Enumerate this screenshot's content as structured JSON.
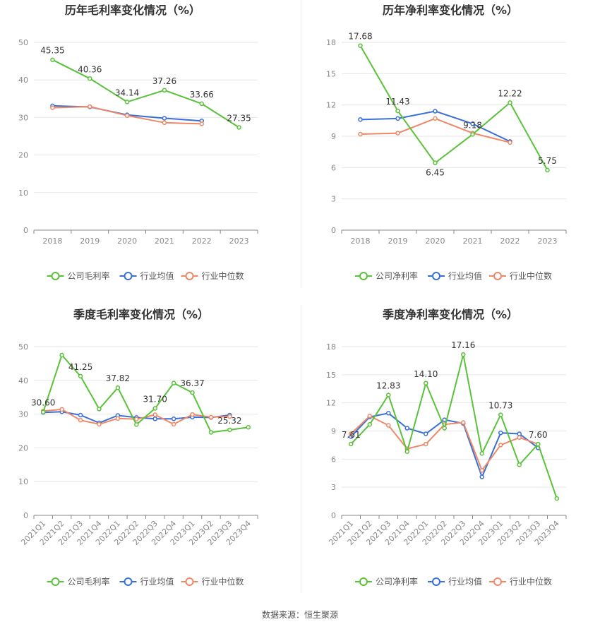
{
  "colors": {
    "company": "#5ac23a",
    "industry_avg": "#3a6fd8",
    "industry_median": "#ee8866",
    "grid": "#e6e6e6",
    "axis": "#888888",
    "title": "#333333",
    "tick": "#888888",
    "label": "#333333"
  },
  "legend_labels": {
    "gross": [
      "公司毛利率",
      "行业均值",
      "行业中位数"
    ],
    "net": [
      "公司净利率",
      "行业均值",
      "行业中位数"
    ]
  },
  "source": "数据来源：恒生聚源",
  "chart_data": [
    {
      "type": "line",
      "title": "历年毛利率变化情况（%）",
      "categories": [
        "2018",
        "2019",
        "2020",
        "2021",
        "2022",
        "2023"
      ],
      "ylim": [
        0,
        50
      ],
      "yticks": [
        0,
        10,
        20,
        30,
        40,
        50
      ],
      "grid": true,
      "legend": "bottom",
      "series": [
        {
          "name": "公司毛利率",
          "values": [
            45.35,
            40.36,
            34.14,
            37.26,
            33.66,
            27.35
          ]
        },
        {
          "name": "行业均值",
          "values": [
            33.1,
            32.8,
            30.7,
            29.8,
            29.1,
            null
          ]
        },
        {
          "name": "行业中位数",
          "values": [
            32.6,
            32.9,
            30.5,
            28.6,
            28.3,
            null
          ]
        }
      ],
      "data_labels": [
        {
          "index": 0,
          "text": "45.35"
        },
        {
          "index": 1,
          "text": "40.36"
        },
        {
          "index": 2,
          "text": "34.14"
        },
        {
          "index": 3,
          "text": "37.26"
        },
        {
          "index": 4,
          "text": "33.66"
        },
        {
          "index": 5,
          "text": "27.35"
        }
      ]
    },
    {
      "type": "line",
      "title": "历年净利率变化情况（%）",
      "categories": [
        "2018",
        "2019",
        "2020",
        "2021",
        "2022",
        "2023"
      ],
      "ylim": [
        0,
        18
      ],
      "yticks": [
        0,
        3,
        6,
        9,
        12,
        15,
        18
      ],
      "grid": true,
      "legend": "bottom",
      "series": [
        {
          "name": "公司净利率",
          "values": [
            17.68,
            11.43,
            6.45,
            9.18,
            12.22,
            5.75
          ]
        },
        {
          "name": "行业均值",
          "values": [
            10.6,
            10.7,
            11.4,
            10.2,
            8.5,
            null
          ]
        },
        {
          "name": "行业中位数",
          "values": [
            9.2,
            9.3,
            10.7,
            9.3,
            8.4,
            null
          ]
        }
      ],
      "data_labels": [
        {
          "index": 0,
          "text": "17.68"
        },
        {
          "index": 1,
          "text": "11.43"
        },
        {
          "index": 2,
          "text": "6.45"
        },
        {
          "index": 3,
          "text": "9.18"
        },
        {
          "index": 4,
          "text": "12.22"
        },
        {
          "index": 5,
          "text": "5.75"
        }
      ]
    },
    {
      "type": "line",
      "title": "季度毛利率变化情况（%）",
      "categories": [
        "2021Q1",
        "2021Q2",
        "2021Q3",
        "2021Q4",
        "2022Q1",
        "2022Q2",
        "2022Q3",
        "2022Q4",
        "2023Q1",
        "2023Q2",
        "2023Q3",
        "2023Q4"
      ],
      "ylim": [
        0,
        50
      ],
      "yticks": [
        0,
        10,
        20,
        30,
        40,
        50
      ],
      "grid": true,
      "legend": "bottom",
      "series": [
        {
          "name": "公司毛利率",
          "values": [
            30.6,
            47.5,
            41.25,
            31.5,
            37.82,
            26.9,
            31.7,
            39.2,
            36.37,
            24.6,
            25.32,
            26.1
          ]
        },
        {
          "name": "行业均值",
          "values": [
            30.5,
            30.7,
            29.7,
            27.4,
            29.6,
            29.0,
            28.6,
            28.6,
            29.1,
            29.0,
            29.7,
            null
          ]
        },
        {
          "name": "行业中位数",
          "values": [
            30.9,
            31.4,
            28.2,
            27.0,
            28.7,
            28.5,
            29.8,
            27.0,
            29.9,
            29.1,
            29.3,
            null
          ]
        }
      ],
      "data_labels": [
        {
          "index": 0,
          "text": "30.60"
        },
        {
          "index": 2,
          "text": "41.25"
        },
        {
          "index": 4,
          "text": "37.82"
        },
        {
          "index": 6,
          "text": "31.70"
        },
        {
          "index": 8,
          "text": "36.37"
        },
        {
          "index": 10,
          "text": "25.32"
        }
      ]
    },
    {
      "type": "line",
      "title": "季度净利率变化情况（%）",
      "categories": [
        "2021Q1",
        "2021Q2",
        "2021Q3",
        "2021Q4",
        "2022Q1",
        "2022Q2",
        "2022Q3",
        "2022Q4",
        "2023Q1",
        "2023Q2",
        "2023Q3",
        "2023Q4"
      ],
      "ylim": [
        0,
        18
      ],
      "yticks": [
        0,
        3,
        6,
        9,
        12,
        15,
        18
      ],
      "grid": true,
      "legend": "bottom",
      "series": [
        {
          "name": "公司净利率",
          "values": [
            7.61,
            9.7,
            12.83,
            6.8,
            14.1,
            9.3,
            17.16,
            6.6,
            10.73,
            5.4,
            7.6,
            1.8
          ]
        },
        {
          "name": "行业均值",
          "values": [
            8.4,
            10.5,
            10.9,
            9.3,
            8.7,
            10.2,
            9.8,
            4.1,
            8.8,
            8.7,
            7.2,
            null
          ]
        },
        {
          "name": "行业中位数",
          "values": [
            8.7,
            10.6,
            9.6,
            7.1,
            7.6,
            9.7,
            9.9,
            4.8,
            7.5,
            8.3,
            7.6,
            null
          ]
        }
      ],
      "data_labels": [
        {
          "index": 0,
          "text": "7.61"
        },
        {
          "index": 2,
          "text": "12.83"
        },
        {
          "index": 4,
          "text": "14.10"
        },
        {
          "index": 6,
          "text": "17.16"
        },
        {
          "index": 8,
          "text": "10.73"
        },
        {
          "index": 10,
          "text": "7.60"
        }
      ]
    }
  ]
}
